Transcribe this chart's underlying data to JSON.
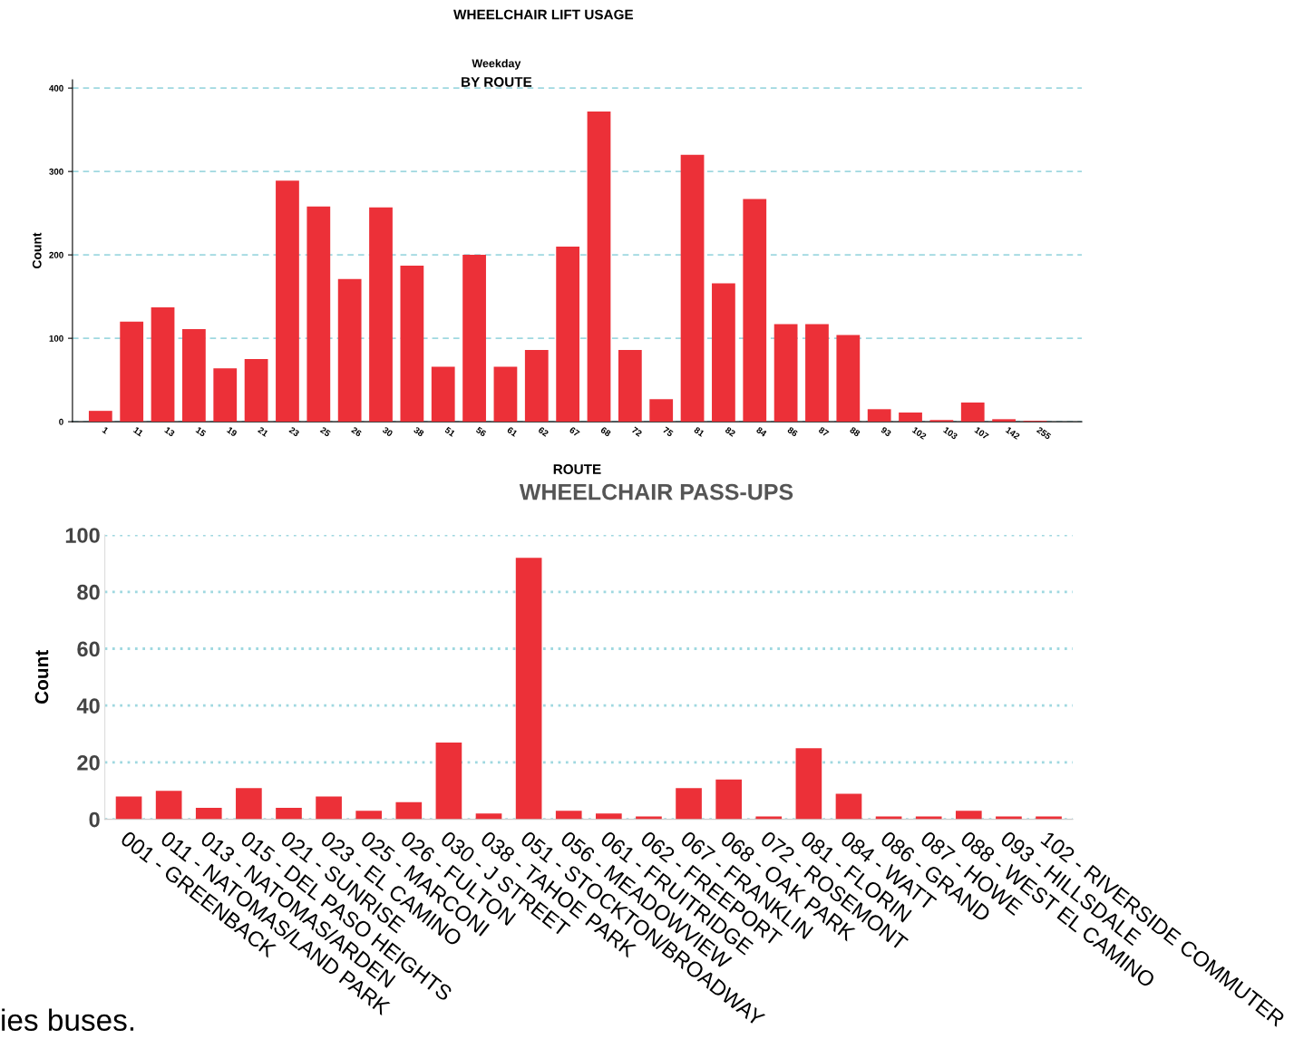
{
  "chart_data": [
    {
      "type": "bar",
      "title": "WHEELCHAIR LIFT USAGE",
      "subtitle": "Weekday",
      "annotations": [
        "BY ROUTE"
      ],
      "xlabel": "ROUTE",
      "ylabel": "Count",
      "categories": [
        "1",
        "11",
        "13",
        "15",
        "19",
        "21",
        "23",
        "25",
        "26",
        "30",
        "38",
        "51",
        "56",
        "61",
        "62",
        "67",
        "68",
        "72",
        "75",
        "81",
        "82",
        "84",
        "86",
        "87",
        "88",
        "93",
        "102",
        "103",
        "107",
        "142",
        "255"
      ],
      "values": [
        13,
        120,
        137,
        111,
        64,
        75,
        289,
        258,
        171,
        257,
        187,
        66,
        200,
        66,
        86,
        210,
        372,
        86,
        27,
        320,
        166,
        267,
        117,
        117,
        104,
        15,
        11,
        2,
        23,
        3,
        1
      ],
      "color": "#ec3038",
      "ylim": [
        0,
        410
      ],
      "yticks": [
        0,
        100,
        200,
        300,
        400
      ],
      "grid": "y",
      "legend": false
    },
    {
      "type": "bar",
      "title": "WHEELCHAIR PASS-UPS",
      "ylabel": "Count",
      "annotations": [
        "ies buses."
      ],
      "categories": [
        "001 - GREENBACK",
        "011 - NATOMAS/LAND PARK",
        "013 - NATOMAS/ARDEN",
        "015 - DEL PASO HEIGHTS",
        "021 - SUNRISE",
        "023 - EL CAMINO",
        "025 - MARCONI",
        "026 - FULTON",
        "030 - J STREET",
        "038 - TAHOE PARK",
        "051 - STOCKTON/BROADWAY",
        "056 - MEADOWVIEW",
        "061 - FRUITRIDGE",
        "062 - FREEPORT",
        "067 - FRANKLIN",
        "068 - OAK PARK",
        "072 - ROSEMONT",
        "081 - FLORIN",
        "084 - WATT",
        "086 - GRAND",
        "087 - HOWE",
        "088 - WEST EL CAMINO",
        "093 - HILLSDALE",
        "102 - RIVERSIDE COMMUTER"
      ],
      "values": [
        8,
        10,
        4,
        11,
        4,
        8,
        3,
        6,
        27,
        2,
        92,
        3,
        2,
        1,
        11,
        14,
        1,
        25,
        9,
        1,
        1,
        3,
        1,
        1
      ],
      "color": "#ec3038",
      "ylim": [
        0,
        100
      ],
      "yticks": [
        0,
        20,
        40,
        60,
        80,
        100
      ],
      "grid": "y",
      "legend": false
    }
  ]
}
